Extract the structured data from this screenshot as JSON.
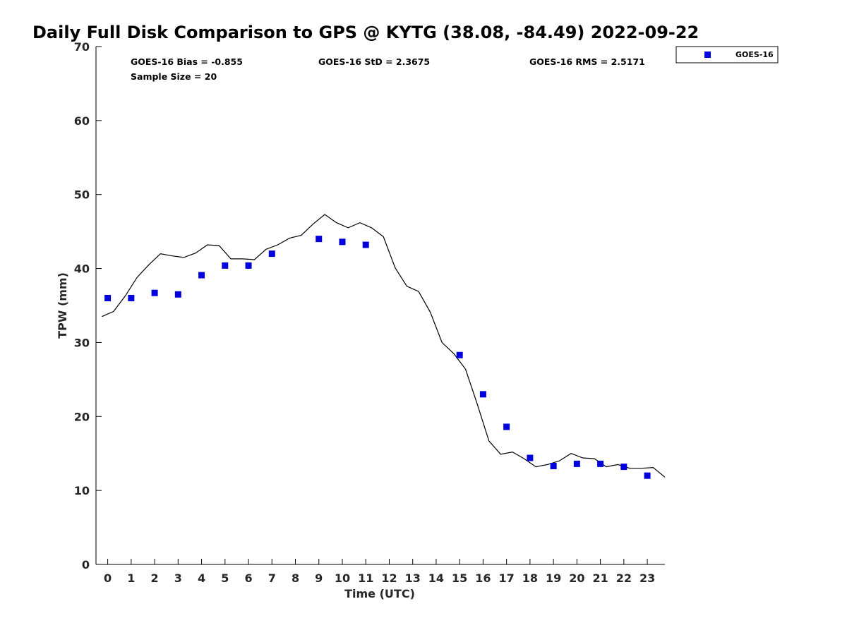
{
  "chart_data": {
    "type": "scatter",
    "title": "Daily Full Disk Comparison to GPS @ KYTG (38.08, -84.49) 2022-09-22",
    "xlabel": "Time (UTC)",
    "ylabel": "TPW (mm)",
    "xlim": [
      -0.5,
      23.75
    ],
    "ylim": [
      0,
      70
    ],
    "xticks": [
      "0",
      "1",
      "2",
      "3",
      "4",
      "5",
      "6",
      "7",
      "8",
      "9",
      "10",
      "11",
      "12",
      "13",
      "14",
      "15",
      "16",
      "17",
      "18",
      "19",
      "20",
      "21",
      "22",
      "23"
    ],
    "yticks": [
      "0",
      "10",
      "20",
      "30",
      "40",
      "50",
      "60",
      "70"
    ],
    "grid": false,
    "legend_position": "top-right, outside plot",
    "stats": {
      "bias": "GOES-16 Bias = -0.855",
      "std": "GOES-16 StD = 2.3675",
      "rms": "GOES-16 RMS = 2.5171",
      "sample_size": "Sample Size = 20"
    },
    "series": [
      {
        "name": "GOES-16",
        "kind": "scatter",
        "marker": "square",
        "color": "#0000dd",
        "x": [
          0,
          1,
          2,
          3,
          4,
          5,
          6,
          7,
          9,
          10,
          11,
          15,
          16,
          17,
          18,
          19,
          20,
          21,
          22,
          23
        ],
        "y": [
          36.0,
          36.0,
          36.7,
          36.5,
          39.1,
          40.4,
          40.4,
          42.0,
          44.0,
          43.6,
          43.2,
          28.3,
          23.0,
          18.6,
          14.4,
          13.3,
          13.6,
          13.6,
          13.2,
          12.0
        ]
      },
      {
        "name": "",
        "kind": "line",
        "color": "#000000",
        "x": [
          -0.25,
          0.25,
          0.75,
          1.25,
          1.75,
          2.25,
          2.75,
          3.25,
          3.75,
          4.25,
          4.75,
          5.25,
          5.75,
          6.25,
          6.75,
          7.25,
          7.75,
          8.25,
          8.75,
          9.25,
          9.75,
          10.25,
          10.75,
          11.25,
          11.75,
          12.25,
          12.75,
          13.25,
          13.75,
          14.25,
          14.75,
          15.25,
          15.75,
          16.25,
          16.75,
          17.25,
          17.75,
          18.25,
          18.75,
          19.25,
          19.75,
          20.25,
          20.75,
          21.25,
          21.75,
          22.25,
          22.75,
          23.25,
          23.75
        ],
        "y": [
          33.5,
          34.2,
          36.3,
          38.8,
          40.5,
          42.0,
          41.7,
          41.5,
          42.1,
          43.2,
          43.1,
          41.3,
          41.3,
          41.2,
          42.6,
          43.2,
          44.1,
          44.5,
          46.0,
          47.3,
          46.2,
          45.5,
          46.2,
          45.5,
          44.3,
          40.1,
          37.6,
          36.9,
          34.1,
          30.0,
          28.5,
          26.4,
          21.7,
          16.7,
          14.9,
          15.2,
          14.3,
          13.2,
          13.5,
          14.0,
          15.0,
          14.4,
          14.3,
          13.2,
          13.5,
          13.0,
          13.0,
          13.1,
          11.8
        ]
      }
    ]
  }
}
